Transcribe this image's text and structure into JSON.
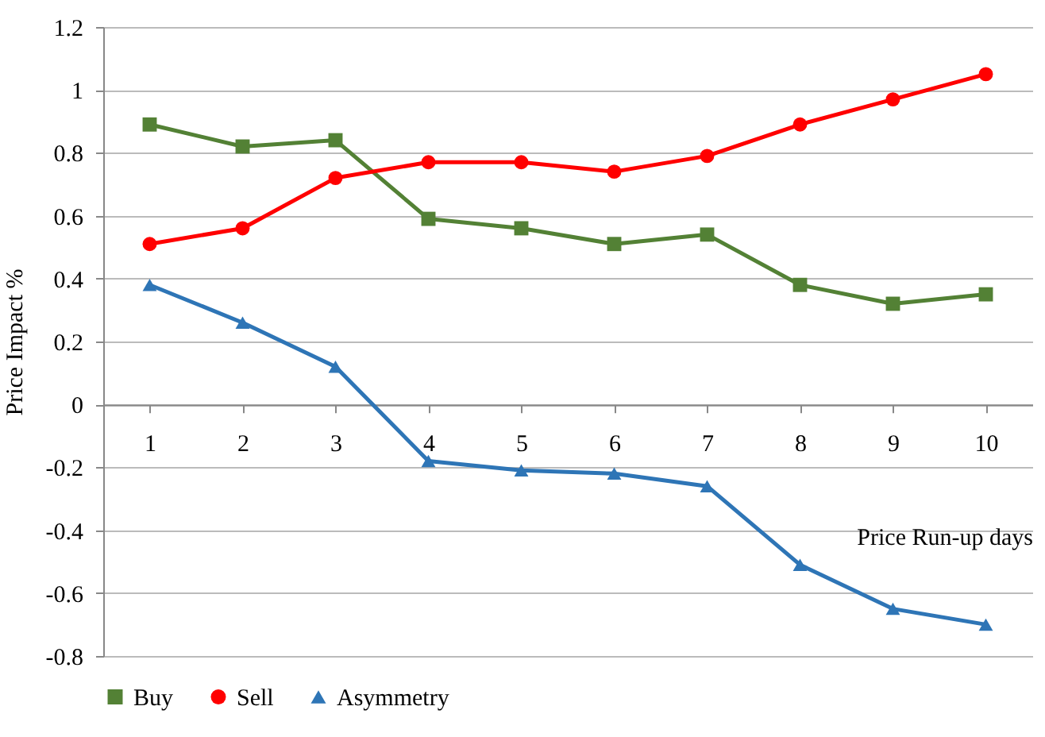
{
  "chart_data": {
    "type": "line",
    "xlabel": "Price Run-up days",
    "ylabel": "Price Impact %",
    "categories": [
      "1",
      "2",
      "3",
      "4",
      "5",
      "6",
      "7",
      "8",
      "9",
      "10"
    ],
    "series": [
      {
        "name": "Buy",
        "color": "#538135",
        "marker": "square",
        "values": [
          0.89,
          0.82,
          0.84,
          0.59,
          0.56,
          0.51,
          0.54,
          0.38,
          0.32,
          0.35
        ]
      },
      {
        "name": "Sell",
        "color": "#ff0000",
        "marker": "circle",
        "values": [
          0.51,
          0.56,
          0.72,
          0.77,
          0.77,
          0.74,
          0.79,
          0.89,
          0.97,
          1.05
        ]
      },
      {
        "name": "Asymmetry",
        "color": "#2e75b6",
        "marker": "triangle",
        "values": [
          0.38,
          0.26,
          0.12,
          -0.18,
          -0.21,
          -0.22,
          -0.26,
          -0.51,
          -0.65,
          -0.7
        ]
      }
    ],
    "ylim": [
      -0.8,
      1.2
    ],
    "yticks": [
      -0.8,
      -0.6,
      -0.4,
      -0.2,
      0,
      0.2,
      0.4,
      0.6,
      0.8,
      1,
      1.2
    ],
    "grid": "y",
    "legend": "bottom",
    "line_style": "solid"
  }
}
